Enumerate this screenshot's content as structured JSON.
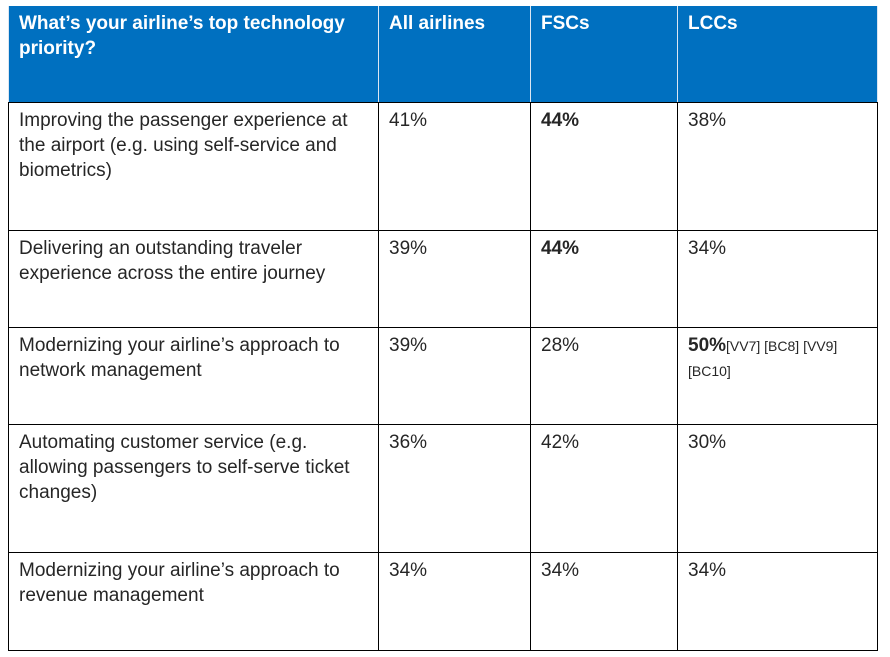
{
  "table": {
    "header": [
      "What’s your airline’s top technology priority?",
      "All airlines",
      "FSCs",
      "LCCs"
    ],
    "rows": [
      [
        "Improving the passenger experience at the airport (e.g. using self-service and biometrics)",
        "41%",
        "44%",
        "38%"
      ],
      [
        "Delivering an outstanding traveler experience across the entire journey",
        "39%",
        "44%",
        "34%"
      ],
      [
        "Modernizing your airline’s approach to network management",
        "39%",
        "28%",
        "50%"
      ],
      [
        "Automating customer service (e.g. allowing passengers to self-serve ticket changes)",
        "36%",
        "42%",
        "30%"
      ],
      [
        "Modernizing your airline’s approach to revenue management",
        "34%",
        "34%",
        "34%"
      ]
    ],
    "annotation": "[VV7] [BC8] [VV9] [BC10]"
  }
}
